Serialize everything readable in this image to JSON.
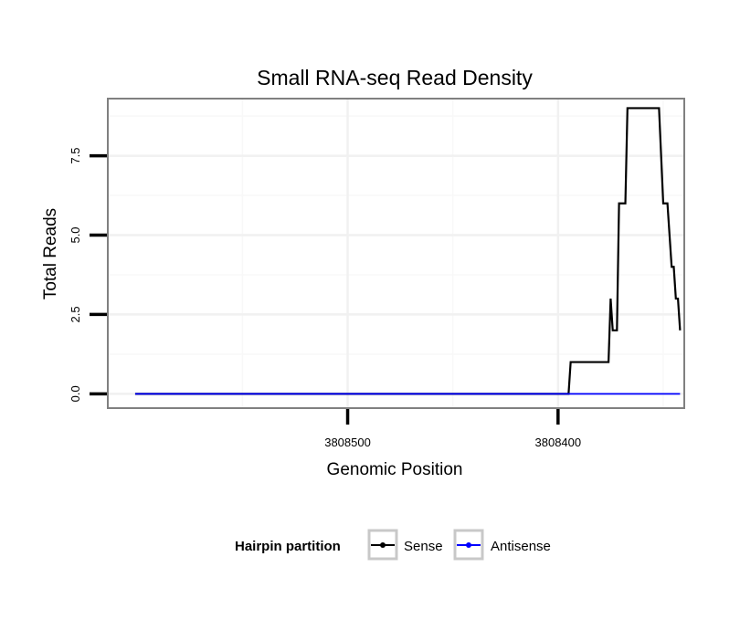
{
  "chart_data": {
    "type": "line",
    "title": "Small RNA-seq Read Density",
    "xlabel": "Genomic Position",
    "ylabel": "Total Reads",
    "x_reversed": true,
    "xlim": [
      3808614,
      3808340
    ],
    "ylim": [
      -0.45,
      9.3
    ],
    "x_ticks": [
      {
        "value": 3808500,
        "label": "3808500"
      },
      {
        "value": 3808400,
        "label": "3808400"
      }
    ],
    "y_ticks": [
      {
        "value": 0,
        "label": "0.0"
      },
      {
        "value": 2.5,
        "label": "2.5"
      },
      {
        "value": 5,
        "label": "5.0"
      },
      {
        "value": 7.5,
        "label": "7.5"
      }
    ],
    "x_minor_grid": [
      3808550,
      3808450,
      3808350
    ],
    "y_minor_grid": [
      1.25,
      3.75,
      6.25,
      8.75
    ],
    "legend": {
      "title": "Hairpin partition",
      "position": "bottom"
    },
    "series": [
      {
        "name": "Sense",
        "color": "#000000",
        "points": [
          [
            3808601,
            0
          ],
          [
            3808395,
            0
          ],
          [
            3808394,
            1
          ],
          [
            3808376,
            1
          ],
          [
            3808375,
            3
          ],
          [
            3808374,
            2
          ],
          [
            3808372,
            2
          ],
          [
            3808371,
            6
          ],
          [
            3808368,
            6
          ],
          [
            3808367,
            9
          ],
          [
            3808352,
            9
          ],
          [
            3808350,
            6
          ],
          [
            3808348,
            6
          ],
          [
            3808346,
            4
          ],
          [
            3808345,
            4
          ],
          [
            3808344,
            3
          ],
          [
            3808343,
            3
          ],
          [
            3808342,
            2
          ]
        ]
      },
      {
        "name": "Antisense",
        "color": "#0000ff",
        "points": [
          [
            3808601,
            0
          ],
          [
            3808342,
            0
          ]
        ]
      }
    ]
  }
}
